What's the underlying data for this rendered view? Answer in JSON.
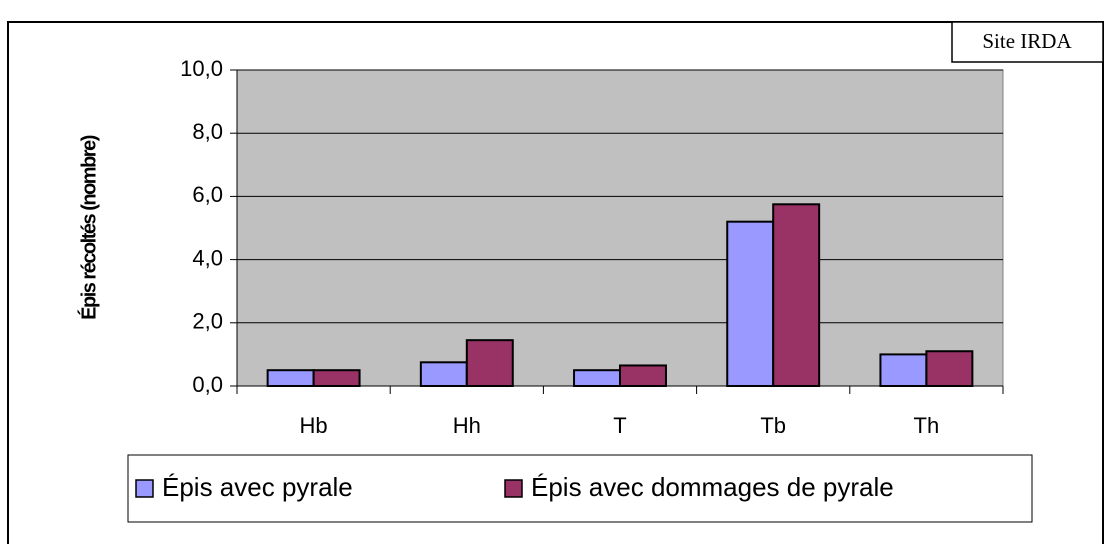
{
  "chart_data": {
    "type": "bar",
    "annotation": "Site IRDA",
    "y_label": "Épis récoltés (nombre)",
    "categories": [
      "Hb",
      "Hh",
      "T",
      "Tb",
      "Th"
    ],
    "series": [
      {
        "name": "Épis avec pyrale",
        "color": "#9999ff",
        "values": [
          0.5,
          0.75,
          0.5,
          5.2,
          1.0
        ]
      },
      {
        "name": "Épis avec dommages de pyrale",
        "color": "#993366",
        "values": [
          0.5,
          1.45,
          0.65,
          5.75,
          1.1
        ]
      }
    ],
    "ylim": [
      0,
      10
    ],
    "yticks": [
      {
        "value": 0,
        "label": "0,0"
      },
      {
        "value": 2,
        "label": "2,0"
      },
      {
        "value": 4,
        "label": "4,0"
      },
      {
        "value": 6,
        "label": "6,0"
      },
      {
        "value": 8,
        "label": "8,0"
      },
      {
        "value": 10,
        "label": "10,0"
      }
    ],
    "grid": true,
    "plot_background": "#c0c0c0"
  }
}
